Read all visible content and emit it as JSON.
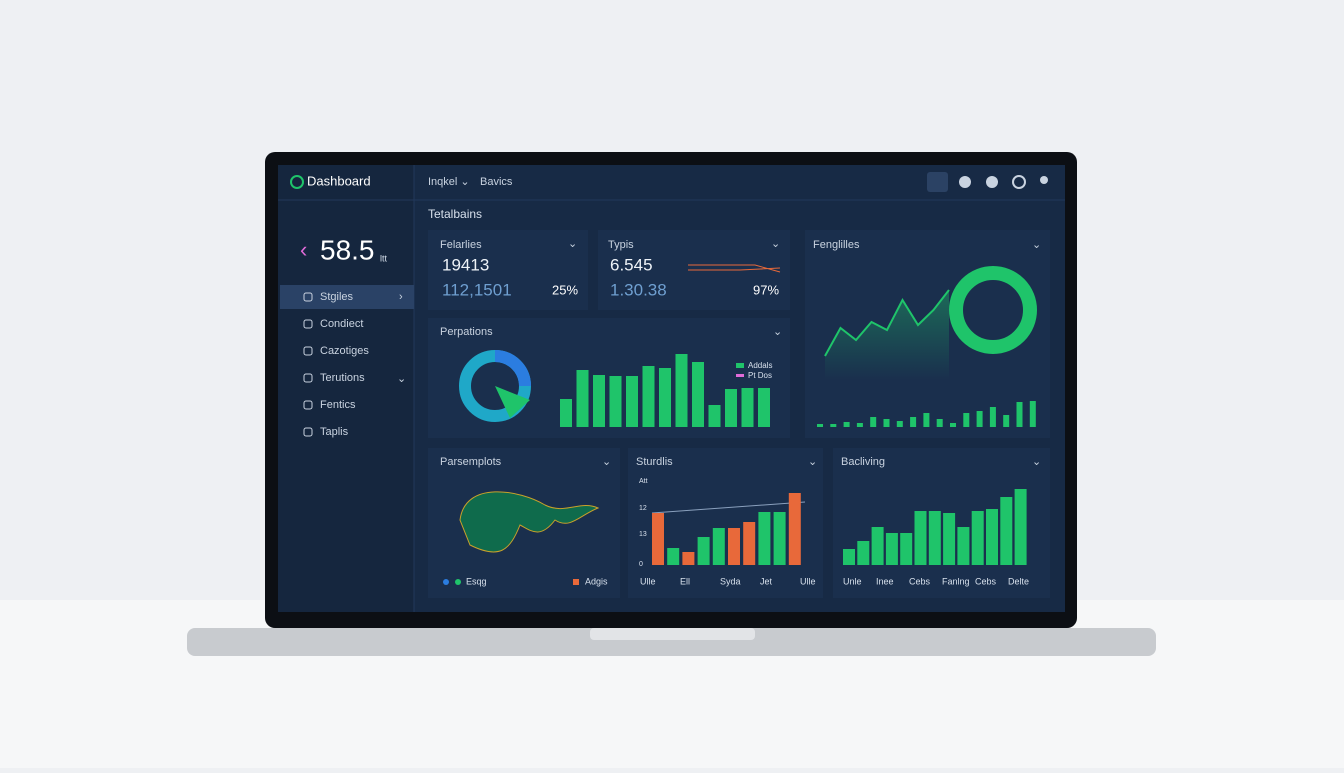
{
  "header": {
    "logo": "Dashboard",
    "nav": [
      "Inqkel ⌄",
      "Bavics"
    ]
  },
  "sidebar": {
    "big_value": "58.5",
    "big_unit": "ltt",
    "menu": [
      "Stgiles",
      "Condiect",
      "Cazotiges",
      "Terutions",
      "Fentics",
      "Taplis"
    ]
  },
  "section_title": "Tetalbains",
  "cards": [
    {
      "title": "Felarlies",
      "main": "19413",
      "sub": "112,1501",
      "pct": "25%"
    },
    {
      "title": "Typis",
      "main": "6.545",
      "sub": "1.30.38",
      "pct": "97%"
    }
  ],
  "fenglilles": {
    "title": "Fenglilles",
    "color": "#1fc46a",
    "line": [
      14,
      42,
      30,
      48,
      40,
      70,
      45,
      60,
      80
    ],
    "bars": [
      3,
      3,
      5,
      4,
      10,
      8,
      6,
      10,
      14,
      8,
      4,
      14,
      16,
      20,
      12,
      25,
      26
    ]
  },
  "perpations": {
    "title": "Perpations",
    "color": "#1fc46a",
    "legend": [
      "Addals",
      "Pt Dos"
    ],
    "bars": [
      28,
      57,
      52,
      51,
      51,
      61,
      59,
      73,
      65,
      22,
      38,
      39,
      39
    ]
  },
  "parsemplots": {
    "title": "Parsemplots",
    "legend": [
      "Esqg",
      "Adgis"
    ]
  },
  "sturdlis": {
    "title": "Sturdlis",
    "axis_labels": [
      "Att",
      "12",
      "13",
      "0"
    ],
    "categories": [
      "Ulle",
      "Ell",
      "Syda",
      "Jet",
      "Ulle"
    ],
    "values": [
      52,
      17,
      13,
      28,
      37,
      37,
      43,
      53,
      53,
      72
    ],
    "colors": [
      "#e8693a",
      "#1fc46a",
      "#e8693a",
      "#1fc46a",
      "#1fc46a",
      "#e8693a",
      "#e8693a",
      "#1fc46a",
      "#1fc46a",
      "#e8693a"
    ]
  },
  "bacliving": {
    "title": "Bacliving",
    "color": "#1fc46a",
    "categories": [
      "Unle",
      "Inee",
      "Cebs",
      "Fanlng",
      "Cebs",
      "Delte"
    ],
    "values": [
      16,
      24,
      38,
      32,
      32,
      54,
      54,
      52,
      38,
      54,
      56,
      68,
      76
    ]
  }
}
